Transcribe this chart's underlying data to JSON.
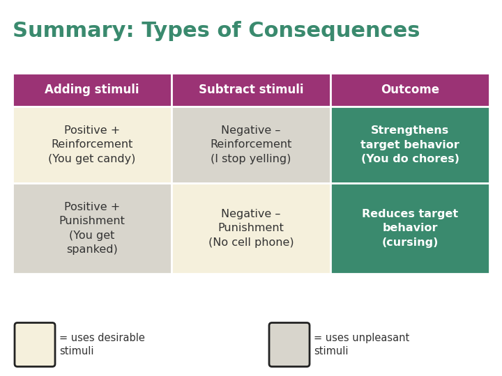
{
  "title": "Summary: Types of Consequences",
  "title_color": "#3a8a6e",
  "title_fontsize": 22,
  "background_color": "#ffffff",
  "header_row": [
    "Adding stimuli",
    "Subtract stimuli",
    "Outcome"
  ],
  "header_bg_colors": [
    "#9b3375",
    "#9b3375",
    "#9b3375"
  ],
  "header_text_color": "#ffffff",
  "row1": [
    "Positive +\nReinforcement\n(You get candy)",
    "Negative –\nReinforcement\n(I stop yelling)",
    "Strengthens\ntarget behavior\n(You do chores)"
  ],
  "row2": [
    "Positive +\nPunishment\n(You get\nspanked)",
    "Negative –\nPunishment\n(No cell phone)",
    "Reduces target\nbehavior\n(cursing)"
  ],
  "row1_bg_colors": [
    "#f5f0dc",
    "#d8d5cc",
    "#3a8a6e"
  ],
  "row2_bg_colors": [
    "#d8d5cc",
    "#f5f0dc",
    "#3a8a6e"
  ],
  "row1_text_colors": [
    "#333333",
    "#333333",
    "#ffffff"
  ],
  "row2_text_colors": [
    "#333333",
    "#333333",
    "#ffffff"
  ],
  "row1_bold": [
    false,
    false,
    true
  ],
  "row2_bold": [
    false,
    false,
    true
  ],
  "legend_left_color": "#f5f0dc",
  "legend_right_color": "#d8d5cc",
  "legend_left_label": "= uses desirable\nstimuli",
  "legend_right_label": "= uses unpleasant\nstimuli"
}
